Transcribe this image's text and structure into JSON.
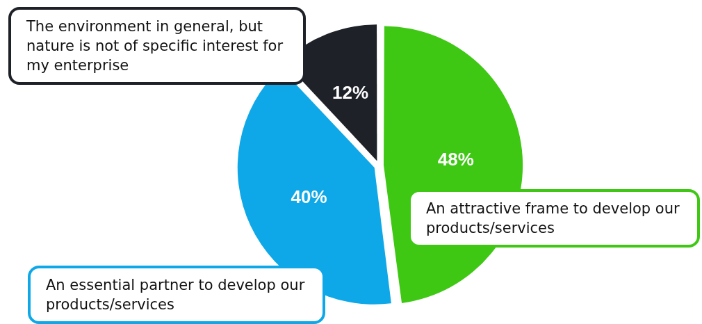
{
  "chart_data": {
    "type": "pie",
    "categories": [
      "An attractive frame to develop our products/services",
      "An essential partner to develop our products/services",
      "The environment in general, but nature is not of specific interest for my enterprise"
    ],
    "values": [
      48,
      40,
      12
    ],
    "value_labels": [
      "48%",
      "40%",
      "12%"
    ],
    "colors": [
      "#3ec814",
      "#0ea8e8",
      "#1e2128"
    ],
    "legend": false
  }
}
